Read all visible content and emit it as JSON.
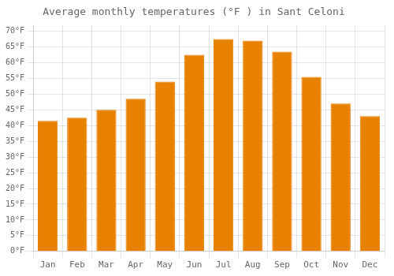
{
  "chart_data": {
    "type": "bar",
    "title": "Average monthly temperatures (°F ) in Sant Celoni",
    "categories": [
      "Jan",
      "Feb",
      "Mar",
      "Apr",
      "May",
      "Jun",
      "Jul",
      "Aug",
      "Sep",
      "Oct",
      "Nov",
      "Dec"
    ],
    "values": [
      41.5,
      42.5,
      45.0,
      48.5,
      54.0,
      62.5,
      67.5,
      67.0,
      63.5,
      55.5,
      47.0,
      43.0
    ],
    "color": "#E88000",
    "ylim": [
      0,
      72
    ],
    "yticks": [
      {
        "value": 0,
        "label": "0°F"
      },
      {
        "value": 5,
        "label": "5°F"
      },
      {
        "value": 10,
        "label": "10°F"
      },
      {
        "value": 15,
        "label": "15°F"
      },
      {
        "value": 20,
        "label": "20°F"
      },
      {
        "value": 25,
        "label": "25°F"
      },
      {
        "value": 30,
        "label": "30°F"
      },
      {
        "value": 35,
        "label": "35°F"
      },
      {
        "value": 40,
        "label": "40°F"
      },
      {
        "value": 45,
        "label": "45°F"
      },
      {
        "value": 50,
        "label": "50°F"
      },
      {
        "value": 55,
        "label": "55°F"
      },
      {
        "value": 60,
        "label": "60°F"
      },
      {
        "value": 65,
        "label": "65°F"
      },
      {
        "value": 70,
        "label": "70°F"
      }
    ],
    "grid": true
  }
}
